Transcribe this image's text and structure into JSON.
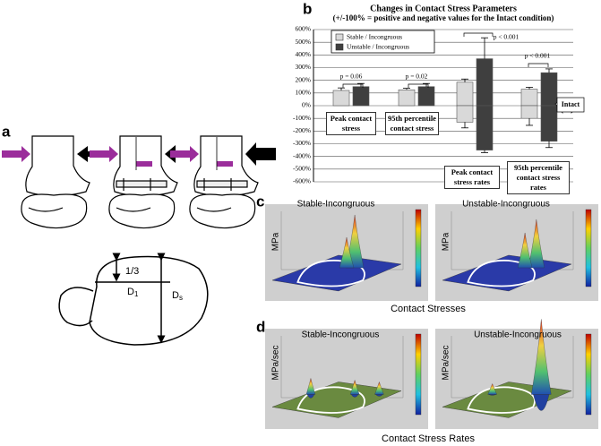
{
  "panel_labels": {
    "a": "a",
    "b": "b",
    "c": "c",
    "d": "d"
  },
  "panel_a": {
    "fraction": "1/3",
    "d1": {
      "letter": "D",
      "sub": "1"
    },
    "ds": {
      "letter": "D",
      "sub": "s"
    }
  },
  "chart_data": {
    "type": "bar",
    "title": "Changes in Contact Stress Parameters",
    "subtitle": "(+/-100% = positive and negative values for the Intact condition)",
    "categories": [
      "Peak contact stress",
      "95th percentile contact stress",
      "Peak contact stress rates",
      "95th percentile contact stress rates"
    ],
    "series": [
      {
        "name": "Stable / Incongruous",
        "color": "#d9d9d9",
        "values": [
          120,
          125,
          185,
          130
        ],
        "errors": [
          20,
          12,
          25,
          15
        ],
        "negative_values": [
          null,
          null,
          -130,
          -100
        ],
        "negative_errors": [
          null,
          null,
          45,
          55
        ]
      },
      {
        "name": "Unstable / Incongruous",
        "color": "#3f3f3f",
        "values": [
          150,
          150,
          370,
          260
        ],
        "errors": [
          25,
          25,
          165,
          30
        ],
        "negative_values": [
          null,
          null,
          -350,
          -280
        ],
        "negative_errors": [
          null,
          null,
          20,
          50
        ]
      }
    ],
    "ylim": [
      -600,
      600
    ],
    "yticks": [
      {
        "value": 600,
        "label": "600%"
      },
      {
        "value": 500,
        "label": "500%"
      },
      {
        "value": 400,
        "label": "400%"
      },
      {
        "value": 300,
        "label": "300%"
      },
      {
        "value": 200,
        "label": "200%"
      },
      {
        "value": 100,
        "label": "100%"
      },
      {
        "value": 0,
        "label": "0%"
      },
      {
        "value": -100,
        "label": "-100%"
      },
      {
        "value": -200,
        "label": "-200%"
      },
      {
        "value": -300,
        "label": "-300%"
      },
      {
        "value": -400,
        "label": "-400%"
      },
      {
        "value": -500,
        "label": "-500%"
      },
      {
        "value": -600,
        "label": "-600%"
      }
    ],
    "grid": true,
    "legend": "upper-left",
    "annotations": [
      "p = 0.06",
      "p = 0.02",
      "p < 0.001",
      "p < 0.001",
      "Intact"
    ]
  },
  "panel_c": {
    "left_title": "Stable-Incongruous",
    "right_title": "Unstable-Incongruous",
    "axis_label": "MPa",
    "caption": "Contact Stresses"
  },
  "panel_d": {
    "left_title": "Stable-Incongruous",
    "right_title": "Unstable-Incongruous",
    "axis_label": "MPa/sec",
    "caption": "Contact Stress Rates"
  }
}
